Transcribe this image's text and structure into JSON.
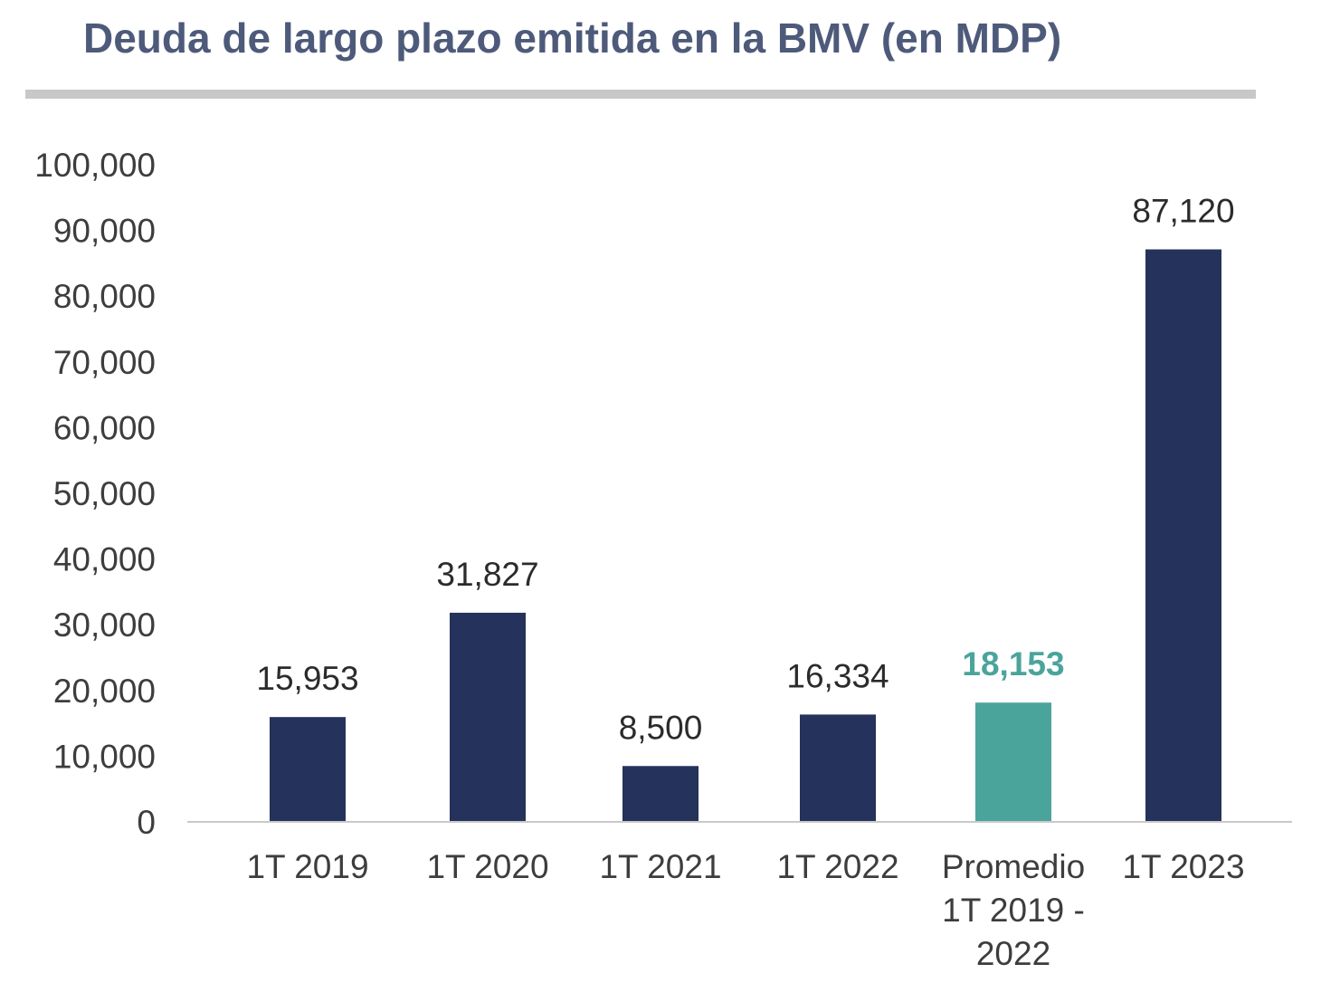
{
  "chart_data": {
    "type": "bar",
    "title": "Deuda de largo plazo emitida en la BMV (en MDP)",
    "xlabel": "",
    "ylabel": "",
    "ylim": [
      0,
      100000
    ],
    "yticks": [
      "0",
      "10,000",
      "20,000",
      "30,000",
      "40,000",
      "50,000",
      "60,000",
      "70,000",
      "80,000",
      "90,000",
      "100,000"
    ],
    "categories": [
      [
        "1T 2019"
      ],
      [
        "1T 2020"
      ],
      [
        "1T 2021"
      ],
      [
        "1T 2022"
      ],
      [
        "Promedio",
        "1T 2019 -",
        "2022"
      ],
      [
        "1T 2023"
      ]
    ],
    "values": [
      15953,
      31827,
      8500,
      16334,
      18153,
      87120
    ],
    "data_labels": [
      "15,953",
      "31,827",
      "8,500",
      "16,334",
      "18,153",
      "87,120"
    ],
    "highlight_index": 4,
    "grid": false,
    "legend": "none"
  },
  "colors": {
    "title": "#4d5a7a",
    "bar": "#24325c",
    "highlight": "#4ba49c",
    "divider": "#c8c8c8",
    "axis": "#c9c9c9"
  }
}
